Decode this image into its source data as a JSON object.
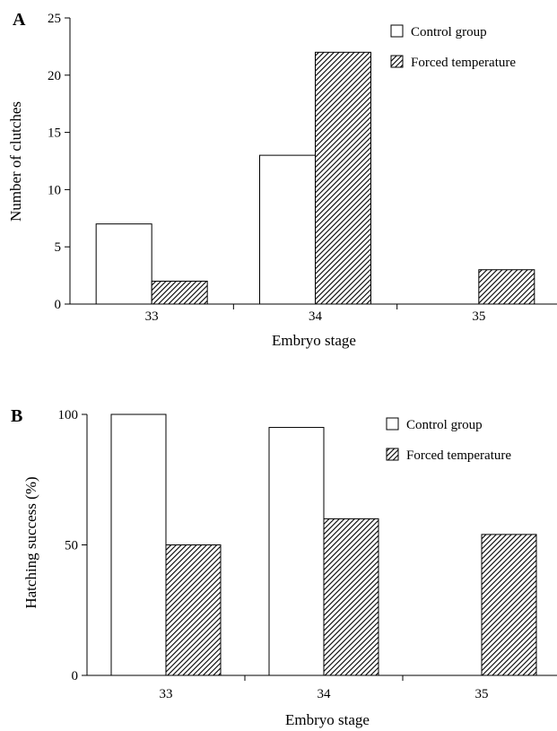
{
  "chart_data": [
    {
      "panel": "A",
      "type": "bar",
      "title": "",
      "xlabel": "Embryo stage",
      "ylabel": "Number of clutches",
      "categories": [
        "33",
        "34",
        "35"
      ],
      "ylim": [
        0,
        25
      ],
      "yticks": [
        0,
        5,
        10,
        15,
        20,
        25
      ],
      "grid": false,
      "legend_position": "top-right",
      "series": [
        {
          "name": "Control group",
          "values": [
            7,
            13,
            0
          ],
          "pattern": "open"
        },
        {
          "name": "Forced temperature",
          "values": [
            2,
            22,
            3
          ],
          "pattern": "hatched"
        }
      ]
    },
    {
      "panel": "B",
      "type": "bar",
      "title": "",
      "xlabel": "Embryo stage",
      "ylabel": "Hatching success (%)",
      "categories": [
        "33",
        "34",
        "35"
      ],
      "ylim": [
        0,
        100
      ],
      "yticks": [
        0,
        50,
        100
      ],
      "grid": false,
      "legend_position": "top-right",
      "series": [
        {
          "name": "Control group",
          "values": [
            100,
            95,
            0
          ],
          "pattern": "open"
        },
        {
          "name": "Forced temperature",
          "values": [
            50,
            60,
            54
          ],
          "pattern": "hatched"
        }
      ]
    }
  ],
  "colors": {
    "bar_stroke": "#000000",
    "bar_fill_open": "#ffffff",
    "hatch": "#000000"
  }
}
